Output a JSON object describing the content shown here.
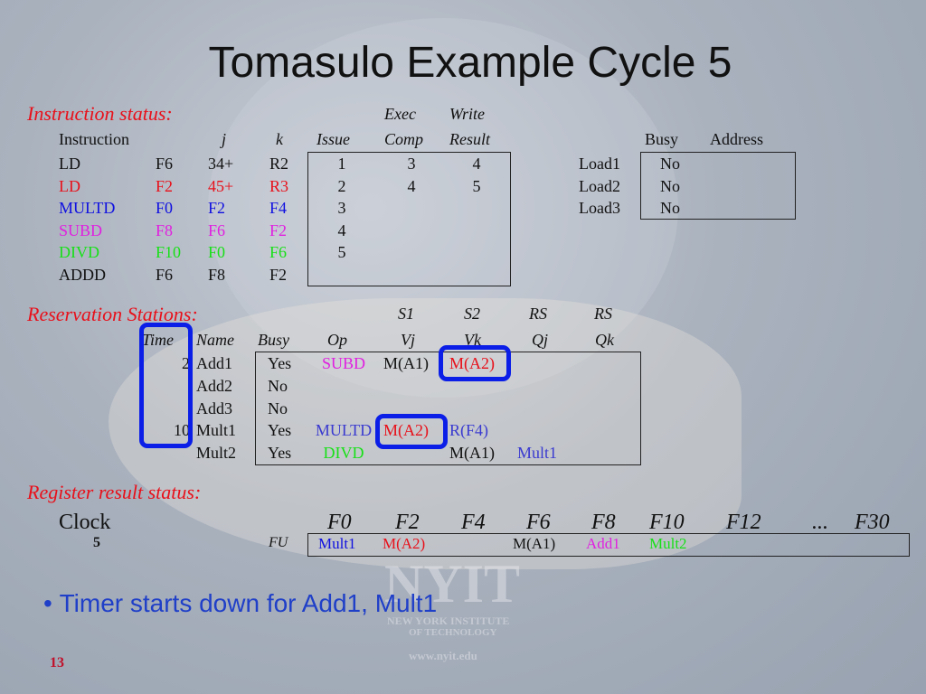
{
  "title": "Tomasulo Example Cycle 5",
  "colors": {
    "black": "#111111",
    "red": "#e8101a",
    "blue": "#1010e0",
    "magenta": "#e020e0",
    "green": "#18e018",
    "slate": "#3a3ad0",
    "highlight": "#0a1ee8"
  },
  "instruction_status": {
    "label": "Instruction status:",
    "headers": {
      "instruction": "Instruction",
      "j": "j",
      "k": "k",
      "issue": "Issue",
      "exec_top": "Exec",
      "exec": "Comp",
      "write_top": "Write",
      "write": "Result"
    },
    "rows": [
      {
        "op": "LD",
        "dst": "F6",
        "j": "34+",
        "k": "R2",
        "issue": "1",
        "exec": "3",
        "write": "4",
        "color": "black"
      },
      {
        "op": "LD",
        "dst": "F2",
        "j": "45+",
        "k": "R3",
        "issue": "2",
        "exec": "4",
        "write": "5",
        "color": "red"
      },
      {
        "op": "MULTD",
        "dst": "F0",
        "j": "F2",
        "k": "F4",
        "issue": "3",
        "exec": "",
        "write": "",
        "color": "blue"
      },
      {
        "op": "SUBD",
        "dst": "F8",
        "j": "F6",
        "k": "F2",
        "issue": "4",
        "exec": "",
        "write": "",
        "color": "magenta"
      },
      {
        "op": "DIVD",
        "dst": "F10",
        "j": "F0",
        "k": "F6",
        "issue": "5",
        "exec": "",
        "write": "",
        "color": "green"
      },
      {
        "op": "ADDD",
        "dst": "F6",
        "j": "F8",
        "k": "F2",
        "issue": "",
        "exec": "",
        "write": "",
        "color": "black"
      }
    ]
  },
  "load_buffers": {
    "headers": {
      "busy": "Busy",
      "address": "Address"
    },
    "rows": [
      {
        "name": "Load1",
        "busy": "No",
        "address": ""
      },
      {
        "name": "Load2",
        "busy": "No",
        "address": ""
      },
      {
        "name": "Load3",
        "busy": "No",
        "address": ""
      }
    ]
  },
  "reservation_stations": {
    "label": "Reservation Stations:",
    "headers_top": {
      "vj": "S1",
      "vk": "S2",
      "qj": "RS",
      "qk": "RS"
    },
    "headers": {
      "time": "Time",
      "name": "Name",
      "busy": "Busy",
      "op": "Op",
      "vj": "Vj",
      "vk": "Vk",
      "qj": "Qj",
      "qk": "Qk"
    },
    "rows": [
      {
        "time": "2",
        "name": "Add1",
        "busy": "Yes",
        "op": "SUBD",
        "op_color": "magenta",
        "vj": "M(A1)",
        "vj_color": "black",
        "vk": "M(A2)",
        "vk_color": "red",
        "qj": "",
        "qk": ""
      },
      {
        "time": "",
        "name": "Add2",
        "busy": "No",
        "op": "",
        "vj": "",
        "vk": "",
        "qj": "",
        "qk": ""
      },
      {
        "time": "",
        "name": "Add3",
        "busy": "No",
        "op": "",
        "vj": "",
        "vk": "",
        "qj": "",
        "qk": ""
      },
      {
        "time": "10",
        "name": "Mult1",
        "busy": "Yes",
        "op": "MULTD",
        "op_color": "slate",
        "vj": "M(A2)",
        "vj_color": "red",
        "vk": "R(F4)",
        "vk_color": "slate",
        "qj": "",
        "qk": ""
      },
      {
        "time": "",
        "name": "Mult2",
        "busy": "Yes",
        "op": "DIVD",
        "op_color": "green",
        "vj": "",
        "vk": "M(A1)",
        "vk_color": "black",
        "qj": "Mult1",
        "qj_color": "slate",
        "qk": ""
      }
    ]
  },
  "register_status": {
    "label": "Register result status:",
    "clock_label": "Clock",
    "clock": "5",
    "fu_label": "FU",
    "registers": [
      {
        "name": "F0",
        "fu": "Mult1",
        "color": "blue"
      },
      {
        "name": "F2",
        "fu": "M(A2)",
        "color": "red"
      },
      {
        "name": "F4",
        "fu": "",
        "color": "black"
      },
      {
        "name": "F6",
        "fu": "M(A1)",
        "color": "black"
      },
      {
        "name": "F8",
        "fu": "Add1",
        "color": "magenta"
      },
      {
        "name": "F10",
        "fu": "Mult2",
        "color": "green"
      },
      {
        "name": "F12",
        "fu": "",
        "color": "black"
      },
      {
        "name": "...",
        "fu": "",
        "color": "black"
      },
      {
        "name": "F30",
        "fu": "",
        "color": "black"
      }
    ]
  },
  "bullet": "Timer starts down for Add1, Mult1",
  "watermark": {
    "logo": "NYIT",
    "line1": "NEW YORK INSTITUTE",
    "line2": "OF TECHNOLOGY",
    "url": "www.nyit.edu"
  },
  "page_number": "13"
}
